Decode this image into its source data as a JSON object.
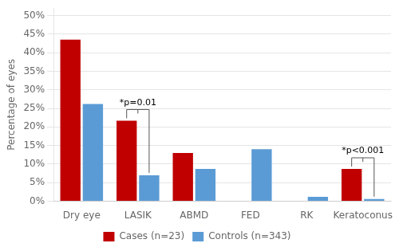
{
  "chart_data": {
    "type": "bar",
    "categories": [
      "Dry eye",
      "LASIK",
      "ABMD",
      "FED",
      "RK",
      "Keratoconus"
    ],
    "series": [
      {
        "name": "Cases (n=23)",
        "color": "#c00000",
        "values": [
          43.5,
          21.7,
          13.0,
          0.0,
          0.0,
          8.7
        ]
      },
      {
        "name": "Controls (n=343)",
        "color": "#5b9bd5",
        "values": [
          26.2,
          7.0,
          8.7,
          14.0,
          1.2,
          0.6
        ]
      }
    ],
    "ylabel": "Percentage of eyes",
    "ylim": [
      0,
      52
    ],
    "yticks": [
      {
        "value": 0,
        "label": "0%"
      },
      {
        "value": 5,
        "label": "5%"
      },
      {
        "value": 10,
        "label": "10%"
      },
      {
        "value": 15,
        "label": "15%"
      },
      {
        "value": 20,
        "label": "20%"
      },
      {
        "value": 25,
        "label": "25%"
      },
      {
        "value": 30,
        "label": "30%"
      },
      {
        "value": 35,
        "label": "35%"
      },
      {
        "value": 40,
        "label": "40%"
      },
      {
        "value": 45,
        "label": "45%"
      },
      {
        "value": 50,
        "label": "50%"
      }
    ],
    "annotations": [
      {
        "text": "*p=0.01",
        "category": "LASIK"
      },
      {
        "text": "*p<0.001",
        "category": "Keratoconus"
      }
    ],
    "grid": true,
    "legend": "bottom"
  }
}
